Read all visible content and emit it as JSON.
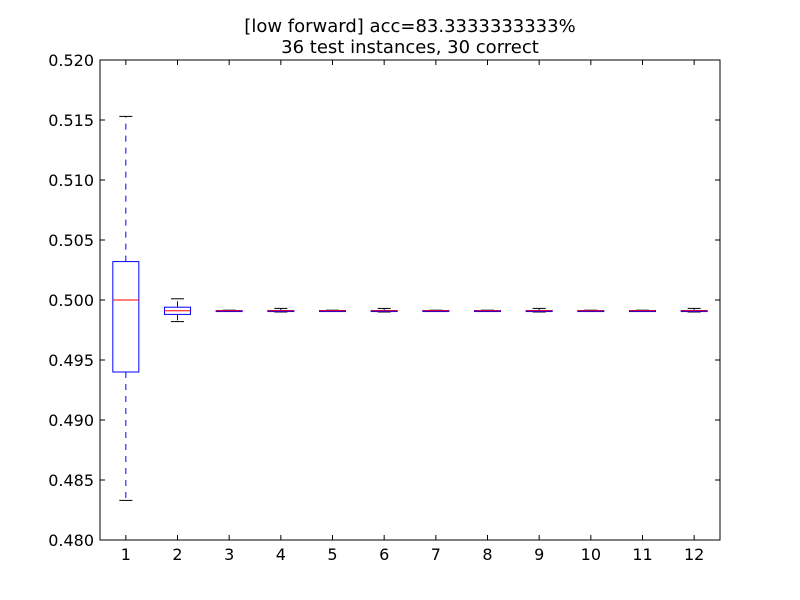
{
  "chart_data": {
    "type": "boxplot",
    "title_line1": "[low forward] acc=83.3333333333%",
    "title_line2": "36 test instances, 30 correct",
    "xlabel": "",
    "ylabel": "",
    "ylim": [
      0.48,
      0.52
    ],
    "yticks": [
      {
        "value": 0.48,
        "label": "0.480"
      },
      {
        "value": 0.485,
        "label": "0.485"
      },
      {
        "value": 0.49,
        "label": "0.490"
      },
      {
        "value": 0.495,
        "label": "0.495"
      },
      {
        "value": 0.5,
        "label": "0.500"
      },
      {
        "value": 0.505,
        "label": "0.505"
      },
      {
        "value": 0.51,
        "label": "0.510"
      },
      {
        "value": 0.515,
        "label": "0.515"
      },
      {
        "value": 0.52,
        "label": "0.520"
      }
    ],
    "categories": [
      "1",
      "2",
      "3",
      "4",
      "5",
      "6",
      "7",
      "8",
      "9",
      "10",
      "11",
      "12"
    ],
    "boxes": [
      {
        "whislo": 0.4833,
        "q1": 0.494,
        "med": 0.5,
        "q3": 0.5032,
        "whishi": 0.5153
      },
      {
        "whislo": 0.4982,
        "q1": 0.4988,
        "med": 0.4991,
        "q3": 0.4994,
        "whishi": 0.5001
      },
      {
        "whislo": 0.49905,
        "q1": 0.49908,
        "med": 0.4991,
        "q3": 0.49912,
        "whishi": 0.49915
      },
      {
        "whislo": 0.499,
        "q1": 0.49908,
        "med": 0.4991,
        "q3": 0.49912,
        "whishi": 0.4993
      },
      {
        "whislo": 0.49905,
        "q1": 0.49908,
        "med": 0.4991,
        "q3": 0.49912,
        "whishi": 0.49915
      },
      {
        "whislo": 0.499,
        "q1": 0.49908,
        "med": 0.4991,
        "q3": 0.49912,
        "whishi": 0.4993
      },
      {
        "whislo": 0.49905,
        "q1": 0.49908,
        "med": 0.4991,
        "q3": 0.49912,
        "whishi": 0.49915
      },
      {
        "whislo": 0.49905,
        "q1": 0.49908,
        "med": 0.4991,
        "q3": 0.49912,
        "whishi": 0.49915
      },
      {
        "whislo": 0.499,
        "q1": 0.49908,
        "med": 0.4991,
        "q3": 0.49912,
        "whishi": 0.4993
      },
      {
        "whislo": 0.49905,
        "q1": 0.49908,
        "med": 0.4991,
        "q3": 0.49912,
        "whishi": 0.49915
      },
      {
        "whislo": 0.49905,
        "q1": 0.49908,
        "med": 0.4991,
        "q3": 0.49912,
        "whishi": 0.49915
      },
      {
        "whislo": 0.499,
        "q1": 0.49908,
        "med": 0.4991,
        "q3": 0.49912,
        "whishi": 0.4993
      }
    ],
    "grid": false,
    "legend": "none",
    "colors": {
      "box": "#0000ff",
      "whisker": "#0000ff",
      "cap": "#000000",
      "median": "#ff0000",
      "axes": "#000000"
    }
  }
}
